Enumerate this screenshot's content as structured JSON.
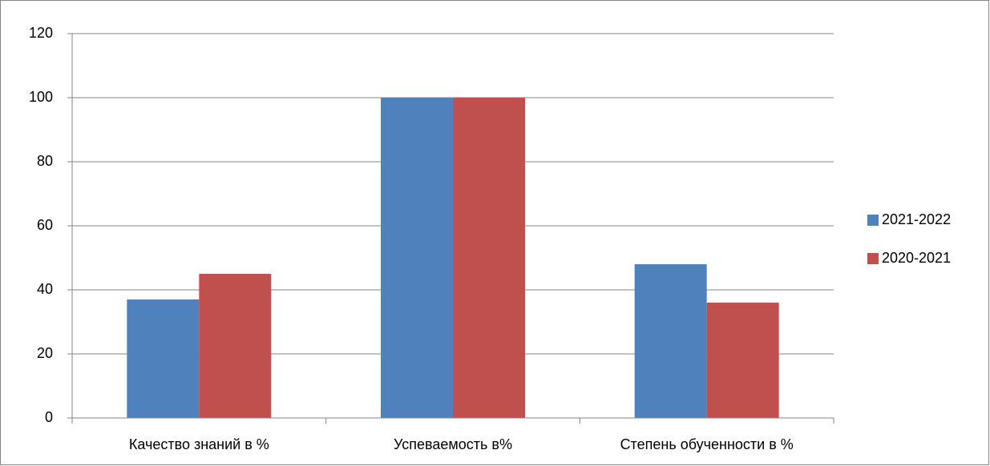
{
  "chart_data": {
    "type": "bar",
    "categories": [
      "Качество знаний в %",
      "Успеваемость в%",
      "Степень обученности в %"
    ],
    "series": [
      {
        "name": "2021-2022",
        "color": "#4f81bd",
        "values": [
          37,
          100,
          48
        ]
      },
      {
        "name": "2020-2021",
        "color": "#c0504d",
        "values": [
          45,
          100,
          36
        ]
      }
    ],
    "ylim": [
      0,
      120
    ],
    "yticks": [
      0,
      20,
      40,
      60,
      80,
      100,
      120
    ],
    "grid": true,
    "legend": "right"
  }
}
